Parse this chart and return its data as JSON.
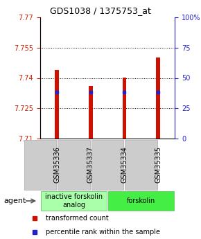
{
  "title": "GDS1038 / 1375753_at",
  "samples": [
    "GSM35336",
    "GSM35337",
    "GSM35334",
    "GSM35335"
  ],
  "bar_tops": [
    7.744,
    7.736,
    7.74,
    7.75
  ],
  "bar_base": 7.71,
  "percentile_values": [
    7.733,
    7.733,
    7.733,
    7.733
  ],
  "ylim_left": [
    7.71,
    7.77
  ],
  "ylim_right": [
    0,
    100
  ],
  "yticks_left": [
    7.71,
    7.725,
    7.74,
    7.755,
    7.77
  ],
  "yticks_right": [
    0,
    25,
    50,
    75,
    100
  ],
  "ytick_labels_left": [
    "7.71",
    "7.725",
    "7.74",
    "7.755",
    "7.77"
  ],
  "ytick_labels_right": [
    "0",
    "25",
    "50",
    "75",
    "100%"
  ],
  "gridlines": [
    7.725,
    7.74,
    7.755
  ],
  "bar_color": "#cc1100",
  "percentile_color": "#2222cc",
  "groups": [
    {
      "label": "inactive forskolin\nanalog",
      "indices": [
        0,
        1
      ],
      "color": "#aaffaa"
    },
    {
      "label": "forskolin",
      "indices": [
        2,
        3
      ],
      "color": "#44ee44"
    }
  ],
  "agent_label": "agent",
  "legend_red": "transformed count",
  "legend_blue": "percentile rank within the sample",
  "bar_width": 0.12,
  "sample_box_color": "#cccccc",
  "title_fontsize": 9,
  "tick_fontsize": 7,
  "sample_fontsize": 7,
  "group_fontsize": 7,
  "legend_fontsize": 7
}
